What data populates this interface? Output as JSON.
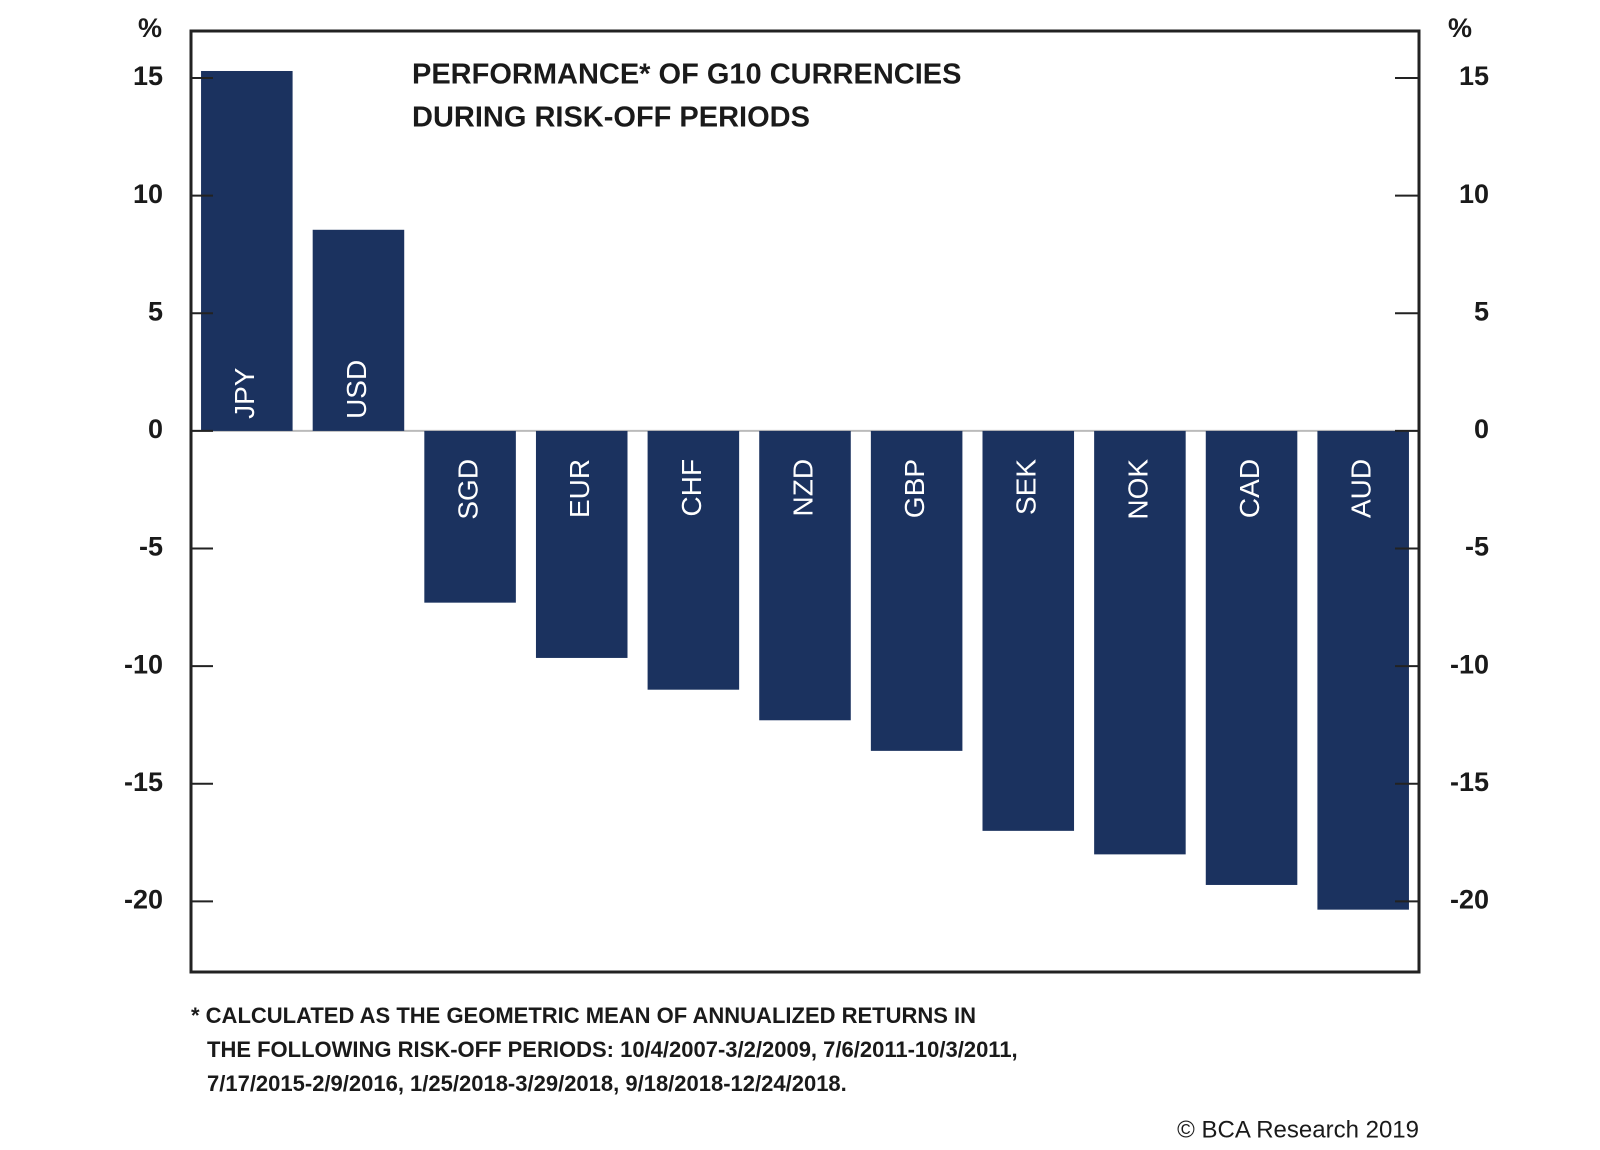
{
  "chart_data": {
    "type": "bar",
    "title": [
      "PERFORMANCE* OF G10 CURRENCIES",
      "DURING RISK-OFF PERIODS"
    ],
    "ylabel": "%",
    "y2label": "%",
    "categories": [
      "JPY",
      "USD",
      "SGD",
      "EUR",
      "CHF",
      "NZD",
      "GBP",
      "SEK",
      "NOK",
      "CAD",
      "AUD"
    ],
    "values": [
      15.3,
      8.55,
      -7.3,
      -9.65,
      -11.0,
      -12.3,
      -13.6,
      -17.0,
      -18.0,
      -19.3,
      -20.35
    ],
    "color": "#1b325f",
    "ylim": [
      -23,
      17
    ],
    "yticks": [
      15,
      10,
      5,
      0,
      -5,
      -10,
      -15,
      -20
    ],
    "y2lim": [
      -23,
      17
    ],
    "y2ticks": [
      15,
      10,
      5,
      0,
      -5,
      -10,
      -15,
      -20
    ],
    "footnote": [
      "* CALCULATED AS THE GEOMETRIC MEAN OF ANNUALIZED RETURNS IN",
      "THE FOLLOWING RISK-OFF PERIODS: 10/4/2007-3/2/2009, 7/6/2011-10/3/2011,",
      "7/17/2015-2/9/2016, 1/25/2018-3/29/2018, 9/18/2018-12/24/2018."
    ],
    "source": "© BCA Research 2019"
  }
}
